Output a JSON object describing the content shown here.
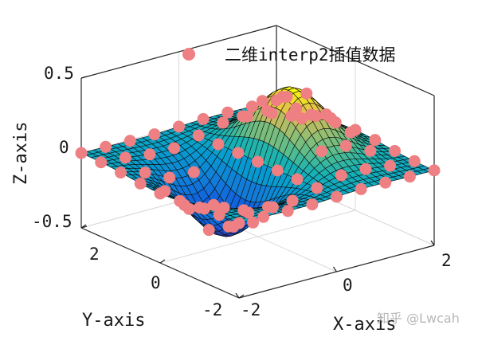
{
  "chart_data": {
    "type": "surface",
    "title": "",
    "xlabel": "X-axis",
    "ylabel": "Y-axis",
    "zlabel": "Z-axis",
    "xlim": [
      -2,
      2
    ],
    "ylim": [
      -2,
      2
    ],
    "zlim": [
      -0.5,
      0.5
    ],
    "x_ticks": [
      "-2",
      "0",
      "2"
    ],
    "y_ticks": [
      "-2",
      "0",
      "2"
    ],
    "z_ticks": [
      "-0.5",
      "0",
      "0.5"
    ],
    "surface_function": "z = x * exp(-x^2 - y^2)",
    "colormap": "parula",
    "interp_grid_step": 0.125,
    "sample_grid_step": 0.5,
    "sample_marker_color": "#ee7f82",
    "grid": true,
    "legend": {
      "position": "top",
      "entries": [
        "二维interp2插值数据"
      ]
    }
  },
  "watermark": "知乎 @Lwcah"
}
